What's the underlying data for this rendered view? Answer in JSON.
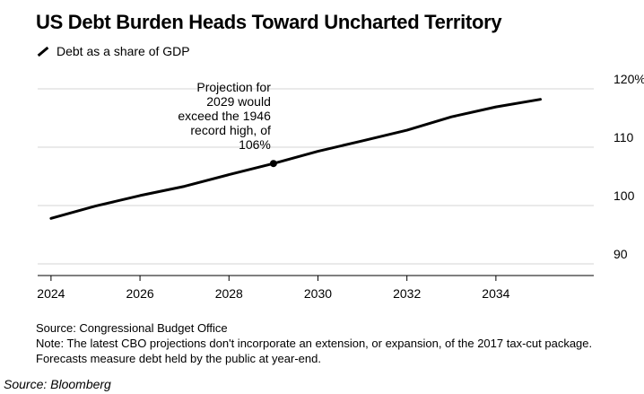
{
  "chart_data": {
    "type": "line",
    "title": "US Debt Burden Heads Toward Uncharted Territory",
    "series": [
      {
        "name": "Debt as a share of GDP",
        "color": "#000000",
        "x": [
          2024,
          2025,
          2026,
          2027,
          2028,
          2029,
          2030,
          2031,
          2032,
          2033,
          2034,
          2035
        ],
        "values": [
          97.8,
          99.9,
          101.7,
          103.3,
          105.3,
          107.2,
          109.3,
          111.1,
          112.9,
          115.2,
          116.9,
          118.2
        ]
      }
    ],
    "xlim": [
      2023.7,
      2036.2
    ],
    "ylim": [
      88,
      122
    ],
    "x_ticks": [
      2024,
      2026,
      2028,
      2030,
      2032,
      2034
    ],
    "y_ticks": [
      {
        "value": 90,
        "label": "90"
      },
      {
        "value": 100,
        "label": "100"
      },
      {
        "value": 110,
        "label": "110"
      },
      {
        "value": 120,
        "label": "120%"
      }
    ],
    "grid": "horizontal",
    "legend_position": "top-left",
    "annotation": {
      "x": 2029,
      "y": 107.2,
      "lines": [
        "Projection for",
        "2029 would",
        "exceed the 1946",
        "record high, of",
        "106%"
      ]
    },
    "source_text": "Source: Congressional Budget Office",
    "note_text": "Note: The latest CBO projections don't incorporate an extension, or expansion, of the 2017 tax-cut package. Forecasts measure debt held by the public at year-end."
  },
  "footer": "Source: Bloomberg"
}
